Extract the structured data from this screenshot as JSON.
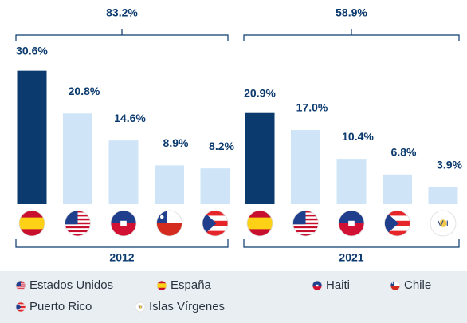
{
  "chart_data": [
    {
      "type": "bar",
      "group": "2012",
      "total": 83.2,
      "total_label": "83.2%",
      "categories": [
        "España",
        "Estados Unidos",
        "Haiti",
        "Chile",
        "Puerto Rico"
      ],
      "values": [
        30.6,
        20.8,
        14.6,
        8.9,
        8.2
      ],
      "value_labels": [
        "30.6%",
        "20.8%",
        "14.6%",
        "8.9%",
        "8.2%"
      ],
      "colors": [
        "#0b3a6e",
        "#cfe5f7",
        "#cfe5f7",
        "#cfe5f7",
        "#cfe5f7"
      ],
      "ylim": [
        0,
        32
      ]
    },
    {
      "type": "bar",
      "group": "2021",
      "total": 58.9,
      "total_label": "58.9%",
      "categories": [
        "España",
        "Estados Unidos",
        "Haiti",
        "Puerto Rico",
        "Islas Vírgenes"
      ],
      "values": [
        20.9,
        17.0,
        10.4,
        6.8,
        3.9
      ],
      "value_labels": [
        "20.9%",
        "17.0%",
        "10.4%",
        "6.8%",
        "3.9%"
      ],
      "colors": [
        "#0b3a6e",
        "#cfe5f7",
        "#cfe5f7",
        "#cfe5f7",
        "#cfe5f7"
      ],
      "ylim": [
        0,
        32
      ]
    }
  ],
  "legend": [
    "Estados Unidos",
    "España",
    "Haiti",
    "Chile",
    "Puerto Rico",
    "Islas Vírgenes"
  ]
}
